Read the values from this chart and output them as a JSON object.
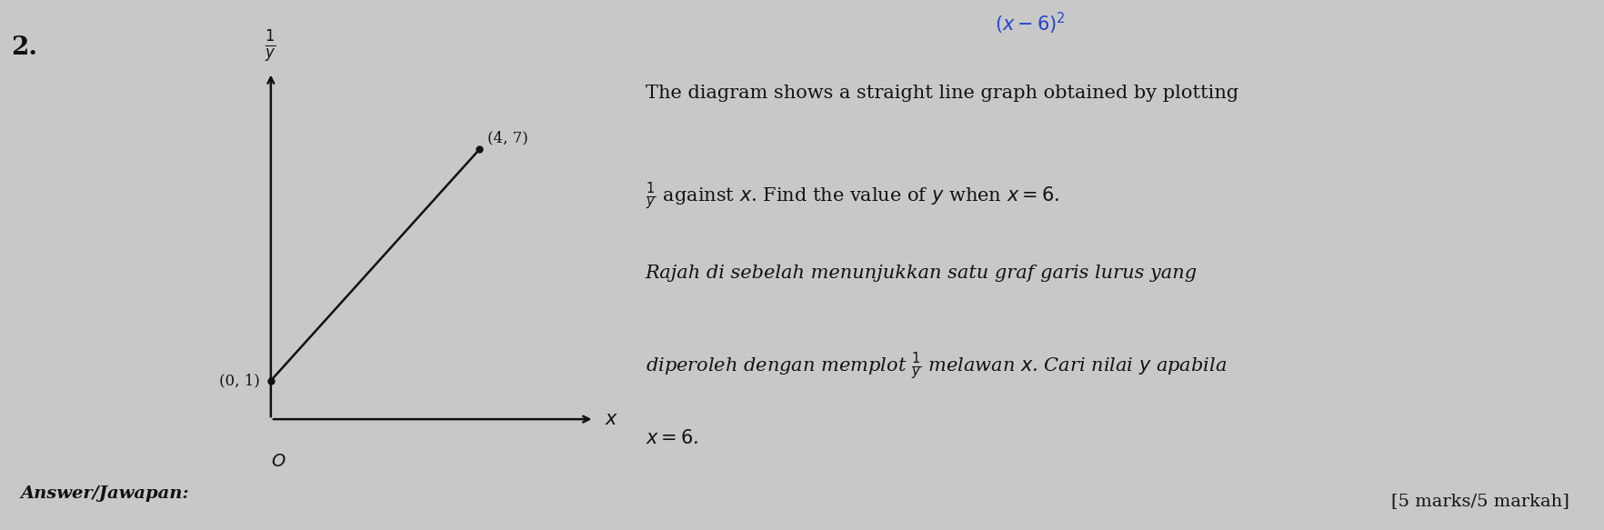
{
  "question_number": "2.",
  "graph": {
    "point1": [
      0,
      1
    ],
    "point2": [
      4,
      7
    ],
    "origin_label": "O",
    "point1_label": "(0, 1)",
    "point2_label": "(4, 7)",
    "bg_color": "#c8c8c8"
  },
  "text_en_line1": "The diagram shows a straight line graph obtained by plotting",
  "text_en_line2": "$\\frac{1}{y}$ against $x$. Find the value of $y$ when $x = 6$.",
  "text_ms_line1": "Rajah di sebelah menunjukkan satu graf garis lurus yang",
  "text_ms_line2": "diperoleh dengan memplot $\\frac{1}{y}$ melawan $x$. Cari nilai $y$ apabila",
  "text_ms_line3": "$x = 6$.",
  "marks": "[5 marks/5 markah]",
  "answer_label": "Answer/Jawapan:",
  "top_right_annotation": "$(x-6)^2$",
  "graph_color": "#111111",
  "text_color": "#111111",
  "annotation_color": "#2244cc"
}
